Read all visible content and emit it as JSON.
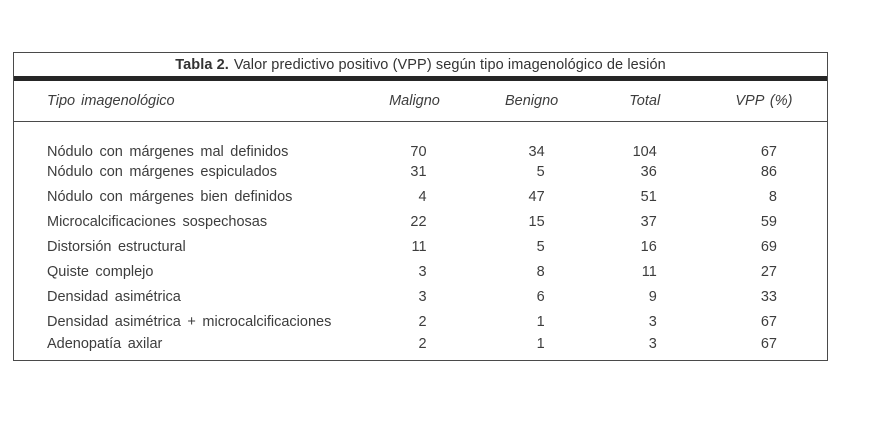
{
  "table": {
    "title": {
      "label": "Tabla 2.",
      "text": "Valor predictivo positivo (VPP) según tipo imagenológico de lesión"
    },
    "columns": {
      "tipo": "Tipo imagenológico",
      "maligno": "Maligno",
      "benigno": "Benigno",
      "total": "Total",
      "vpp": "VPP (%)"
    },
    "rows": [
      [
        "Nódulo con márgenes mal definidos",
        "70",
        "34",
        "104",
        "67"
      ],
      [
        "Nódulo con márgenes espiculados",
        "31",
        "5",
        "36",
        "86"
      ],
      [
        "Nódulo con márgenes bien definidos",
        "4",
        "47",
        "51",
        "8"
      ],
      [
        "Microcalcificaciones sospechosas",
        "22",
        "15",
        "37",
        "59"
      ],
      [
        "Distorsión estructural",
        "11",
        "5",
        "16",
        "69"
      ],
      [
        "Quiste complejo",
        "3",
        "8",
        "11",
        "27"
      ],
      [
        "Densidad asimétrica",
        "3",
        "6",
        "9",
        "33"
      ],
      [
        "Densidad asimétrica + microcalcificaciones",
        "2",
        "1",
        "3",
        "67"
      ],
      [
        "Adenopatía axilar",
        "2",
        "1",
        "3",
        "67"
      ]
    ],
    "colors": {
      "text": "#3d3d3d",
      "border": "#4a4a4a",
      "thick_rule": "#262626",
      "background": "#ffffff"
    }
  }
}
